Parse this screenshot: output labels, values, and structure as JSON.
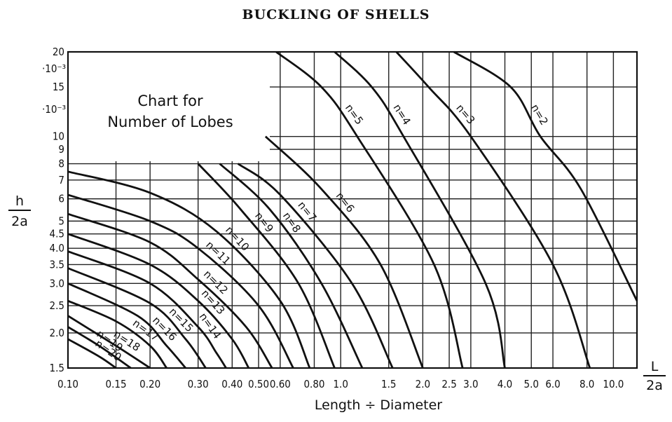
{
  "page": {
    "title": "BUCKLING OF SHELLS"
  },
  "chart_data": {
    "type": "line",
    "title": "Chart for Number of Lobes",
    "title_lines": [
      "Chart for",
      "Number of Lobes"
    ],
    "xlabel": "Length ÷ Diameter",
    "xlabel_fraction": {
      "num": "L",
      "den": "2a"
    },
    "ylabel_fraction": {
      "num": "h",
      "den": "2a"
    },
    "x_scale": "log",
    "y_scale": "log",
    "xlim": [
      0.1,
      12.2
    ],
    "ylim": [
      1.5,
      20
    ],
    "x_ticks": [
      0.1,
      0.15,
      0.2,
      0.3,
      0.4,
      0.5,
      0.6,
      0.8,
      1.0,
      1.5,
      2.0,
      2.5,
      3.0,
      4.0,
      5.0,
      6.0,
      8.0,
      10.0
    ],
    "x_tick_labels": [
      "0.10",
      "0.15",
      "0.20",
      "0.30",
      "0.40",
      "0.50",
      "0.60",
      "0.80",
      "1.0",
      "1.5",
      "2.0",
      "2.5",
      "3.0",
      "4.0",
      "5.0",
      "6.0",
      "8.0",
      "10.0"
    ],
    "y_ticks": [
      1.5,
      2.0,
      2.5,
      3.0,
      3.5,
      4.0,
      4.5,
      5,
      6,
      7,
      8,
      9,
      10,
      15,
      20
    ],
    "y_tick_labels": [
      "1.5",
      "2.0",
      "2.5",
      "3.0",
      "3.5",
      "4.0",
      "4.5",
      "5",
      "6",
      "7",
      "8",
      "9",
      "10",
      "15",
      "20"
    ],
    "y_multiplier_labels": [
      "·10⁻³",
      "·10⁻³"
    ],
    "grid": true,
    "series": [
      {
        "name": "n=2",
        "points": [
          [
            2.6,
            20
          ],
          [
            4.2,
            15
          ],
          [
            5.4,
            10
          ],
          [
            7.6,
            6.5
          ],
          [
            12.2,
            2.6
          ]
        ]
      },
      {
        "name": "n=3",
        "points": [
          [
            1.6,
            20
          ],
          [
            2.1,
            15
          ],
          [
            3.0,
            10
          ],
          [
            6.0,
            3.5
          ],
          [
            8.2,
            1.5
          ]
        ]
      },
      {
        "name": "n=4",
        "points": [
          [
            0.95,
            20
          ],
          [
            1.3,
            15
          ],
          [
            1.7,
            10
          ],
          [
            3.4,
            3.0
          ],
          [
            4.0,
            1.5
          ]
        ]
      },
      {
        "name": "n=5",
        "points": [
          [
            0.58,
            20
          ],
          [
            0.85,
            15
          ],
          [
            1.15,
            10
          ],
          [
            2.2,
            3.5
          ],
          [
            2.8,
            1.5
          ]
        ]
      },
      {
        "name": "n=6",
        "points": [
          [
            0.53,
            10
          ],
          [
            0.85,
            6.5
          ],
          [
            1.4,
            3.5
          ],
          [
            2.0,
            1.5
          ]
        ]
      },
      {
        "name": "n=7",
        "points": [
          [
            0.42,
            8
          ],
          [
            0.6,
            6.2
          ],
          [
            1.1,
            3.0
          ],
          [
            1.55,
            1.5
          ]
        ]
      },
      {
        "name": "n=8",
        "points": [
          [
            0.36,
            8
          ],
          [
            0.55,
            5.5
          ],
          [
            0.85,
            3.0
          ],
          [
            1.2,
            1.5
          ]
        ]
      },
      {
        "name": "n=9",
        "points": [
          [
            0.3,
            8
          ],
          [
            0.43,
            5.5
          ],
          [
            0.7,
            3.0
          ],
          [
            0.95,
            1.5
          ]
        ]
      },
      {
        "name": "n=10",
        "points": [
          [
            0.1,
            7.5
          ],
          [
            0.2,
            6.3
          ],
          [
            0.35,
            4.6
          ],
          [
            0.6,
            2.6
          ],
          [
            0.77,
            1.5
          ]
        ]
      },
      {
        "name": "n=11",
        "points": [
          [
            0.1,
            6.2
          ],
          [
            0.2,
            5.0
          ],
          [
            0.3,
            4.0
          ],
          [
            0.5,
            2.5
          ],
          [
            0.67,
            1.5
          ]
        ]
      },
      {
        "name": "n=12",
        "points": [
          [
            0.1,
            5.3
          ],
          [
            0.2,
            4.2
          ],
          [
            0.3,
            3.1
          ],
          [
            0.45,
            2.1
          ],
          [
            0.56,
            1.5
          ]
        ]
      },
      {
        "name": "n=13",
        "points": [
          [
            0.1,
            4.5
          ],
          [
            0.2,
            3.5
          ],
          [
            0.3,
            2.6
          ],
          [
            0.4,
            1.9
          ],
          [
            0.46,
            1.5
          ]
        ]
      },
      {
        "name": "n=14",
        "points": [
          [
            0.1,
            3.9
          ],
          [
            0.2,
            3.0
          ],
          [
            0.3,
            2.1
          ],
          [
            0.35,
            1.7
          ],
          [
            0.38,
            1.5
          ]
        ]
      },
      {
        "name": "n=15",
        "points": [
          [
            0.1,
            3.4
          ],
          [
            0.2,
            2.55
          ],
          [
            0.27,
            1.9
          ],
          [
            0.32,
            1.5
          ]
        ]
      },
      {
        "name": "n=16",
        "points": [
          [
            0.1,
            3.0
          ],
          [
            0.18,
            2.3
          ],
          [
            0.23,
            1.8
          ],
          [
            0.27,
            1.5
          ]
        ]
      },
      {
        "name": "n=17",
        "points": [
          [
            0.1,
            2.6
          ],
          [
            0.15,
            2.2
          ],
          [
            0.2,
            1.8
          ],
          [
            0.23,
            1.5
          ]
        ]
      },
      {
        "name": "n=18",
        "points": [
          [
            0.1,
            2.3
          ],
          [
            0.15,
            1.8
          ],
          [
            0.2,
            1.5
          ]
        ]
      },
      {
        "name": "n=19",
        "points": [
          [
            0.1,
            2.1
          ],
          [
            0.13,
            1.8
          ],
          [
            0.17,
            1.5
          ]
        ]
      },
      {
        "name": "n=20",
        "points": [
          [
            0.1,
            1.9
          ],
          [
            0.13,
            1.65
          ],
          [
            0.15,
            1.5
          ]
        ]
      }
    ]
  }
}
